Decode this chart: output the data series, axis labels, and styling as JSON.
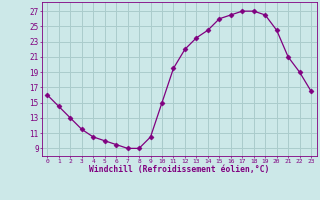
{
  "x": [
    0,
    1,
    2,
    3,
    4,
    5,
    6,
    7,
    8,
    9,
    10,
    11,
    12,
    13,
    14,
    15,
    16,
    17,
    18,
    19,
    20,
    21,
    22,
    23
  ],
  "y": [
    16,
    14.5,
    13,
    11.5,
    10.5,
    10,
    9.5,
    9,
    9,
    10.5,
    15,
    19.5,
    22,
    23.5,
    24.5,
    26,
    26.5,
    27,
    27,
    26.5,
    24.5,
    21,
    19,
    16.5
  ],
  "line_color": "#800080",
  "marker": "D",
  "marker_size": 2.5,
  "bg_color": "#cce8e8",
  "grid_color": "#aacccc",
  "xlabel": "Windchill (Refroidissement éolien,°C)",
  "xlabel_color": "#800080",
  "tick_color": "#800080",
  "yticks": [
    9,
    11,
    13,
    15,
    17,
    19,
    21,
    23,
    25,
    27
  ],
  "ylim": [
    8.0,
    28.2
  ],
  "xlim": [
    -0.5,
    23.5
  ]
}
